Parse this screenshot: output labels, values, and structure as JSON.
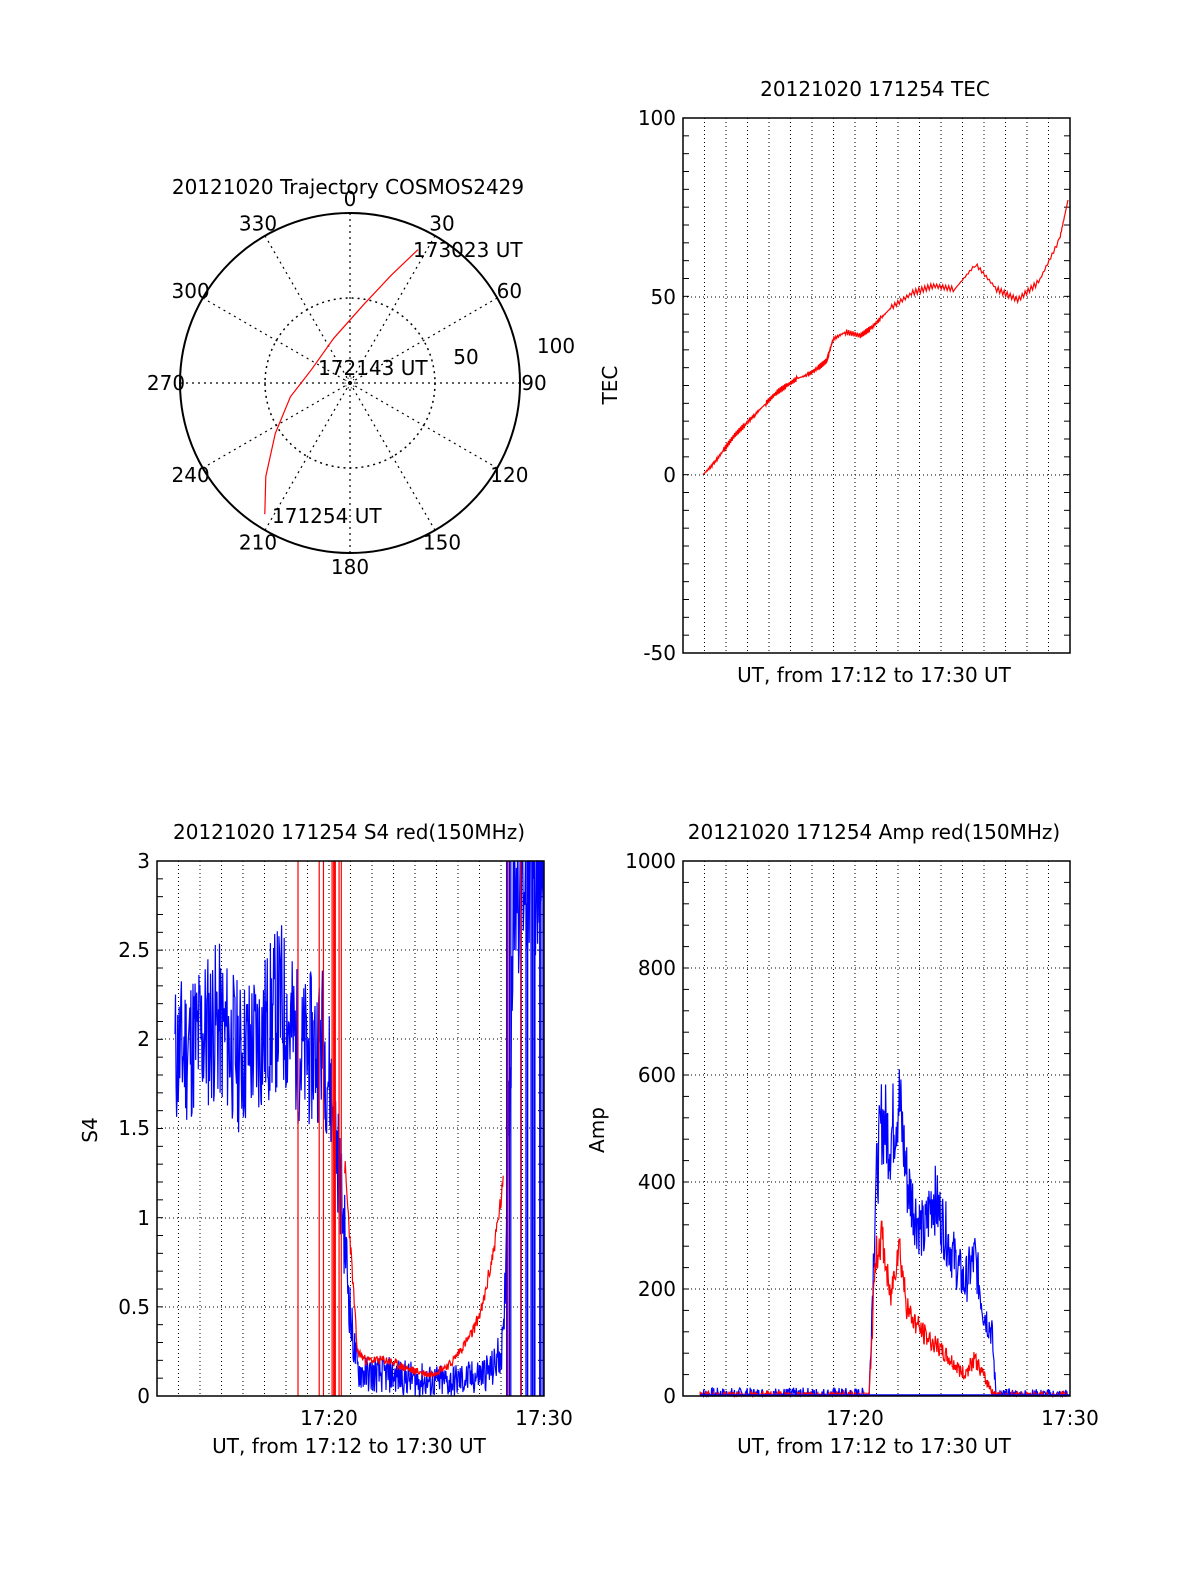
{
  "chart_data": [
    {
      "type": "polar",
      "title": "20121020 Trajectory COSMOS2429",
      "angle_labels": [
        "0",
        "30",
        "60",
        "90",
        "120",
        "150",
        "180",
        "210",
        "240",
        "270",
        "300",
        "330"
      ],
      "radial_labels": [
        "50",
        "100"
      ],
      "annotations": [
        "173023 UT",
        "172143 UT",
        "171254 UT"
      ],
      "series": [
        {
          "color": "#ff0000",
          "points": [
            {
              "azimuth": 213,
              "zenith": 92
            },
            {
              "azimuth": 222,
              "zenith": 74
            },
            {
              "azimuth": 236,
              "zenith": 53
            },
            {
              "azimuth": 257,
              "zenith": 36
            },
            {
              "azimuth": 289,
              "zenith": 24
            },
            {
              "azimuth": 340,
              "zenith": 28
            },
            {
              "azimuth": 10,
              "zenith": 47
            },
            {
              "azimuth": 21,
              "zenith": 68
            },
            {
              "azimuth": 27,
              "zenith": 88
            }
          ]
        }
      ]
    },
    {
      "type": "line",
      "title": "20121020 171254 TEC",
      "ylabel": "TEC",
      "xlabel": "UT, from 17:12 to 17:30 UT",
      "ylim": [
        -50,
        100
      ],
      "yticks": [
        "-50",
        "0",
        "50",
        "100"
      ],
      "series": [
        {
          "color": "#ff0000",
          "x": [
            0,
            0.5,
            1,
            1.5,
            2,
            2.5,
            3,
            3.5,
            4,
            4.5,
            5,
            5.5,
            5.9,
            6.0,
            6.2,
            6.8,
            7.5,
            8.0,
            8.5,
            9.0,
            10.0,
            11.0,
            12.0,
            13.0,
            14.0,
            15.0,
            16.0,
            17.0,
            17.4
          ],
          "y": [
            0,
            3,
            7,
            11,
            14,
            17,
            20,
            23,
            25,
            27,
            28,
            30,
            32,
            34,
            38,
            40,
            39,
            41,
            44,
            47,
            51,
            53,
            52,
            59,
            52,
            49,
            54,
            66,
            77
          ]
        }
      ]
    },
    {
      "type": "line",
      "title": "20121020 171254 S4 red(150MHz)",
      "ylabel": "S4",
      "xlabel": "UT, from 17:12 to 17:30 UT",
      "ylim": [
        0,
        3
      ],
      "yticks": [
        "0",
        "0.5",
        "1",
        "1.5",
        "2",
        "2.5",
        "3"
      ],
      "xticks": [
        "17:20",
        "17:30"
      ],
      "series": [
        {
          "color": "#0000ff",
          "x": [
            0,
            1,
            2,
            3,
            4,
            5,
            6,
            7,
            7.5,
            8.0,
            8.3,
            8.6,
            9,
            10,
            11,
            12,
            13,
            14,
            15,
            15.5,
            16,
            16.5,
            17,
            17.4
          ],
          "y": [
            1.9,
            2.0,
            2.1,
            1.9,
            2.0,
            2.2,
            1.9,
            2.0,
            1.6,
            0.9,
            0.4,
            0.15,
            0.12,
            0.12,
            0.1,
            0.08,
            0.08,
            0.1,
            0.15,
            0.3,
            3.0,
            3.0,
            3.0,
            3.0
          ]
        },
        {
          "color": "#ff0000",
          "x": [
            8.0,
            8.3,
            8.6,
            9,
            10,
            11,
            12,
            13,
            14,
            14.5,
            15,
            15.5
          ],
          "y": [
            1.3,
            0.8,
            0.25,
            0.2,
            0.2,
            0.15,
            0.12,
            0.18,
            0.35,
            0.5,
            0.8,
            1.2
          ]
        }
      ]
    },
    {
      "type": "line",
      "title": "20121020 171254 Amp red(150MHz)",
      "ylabel": "Amp",
      "xlabel": "UT, from 17:12 to 17:30 UT",
      "ylim": [
        0,
        1000
      ],
      "yticks": [
        "0",
        "200",
        "400",
        "600",
        "800",
        "1000"
      ],
      "xticks": [
        "17:20",
        "17:30"
      ],
      "series": [
        {
          "color": "#0000ff",
          "x": [
            0,
            5,
            8.0,
            8.3,
            8.6,
            9.0,
            9.4,
            9.8,
            10.2,
            10.6,
            11.0,
            11.5,
            12.0,
            12.5,
            13.0,
            13.4,
            13.8,
            14.0,
            17.4
          ],
          "y": [
            2,
            2,
            2,
            380,
            520,
            480,
            560,
            400,
            340,
            300,
            380,
            320,
            260,
            210,
            260,
            160,
            120,
            0,
            0
          ]
        },
        {
          "color": "#ff0000",
          "x": [
            0,
            8.0,
            8.3,
            8.6,
            9.0,
            9.4,
            9.8,
            10.5,
            11.0,
            12.0,
            12.5,
            13.0,
            13.5,
            14.0,
            17.4
          ],
          "y": [
            0,
            0,
            260,
            300,
            180,
            290,
            160,
            120,
            100,
            60,
            40,
            70,
            30,
            0,
            0
          ]
        }
      ]
    }
  ]
}
